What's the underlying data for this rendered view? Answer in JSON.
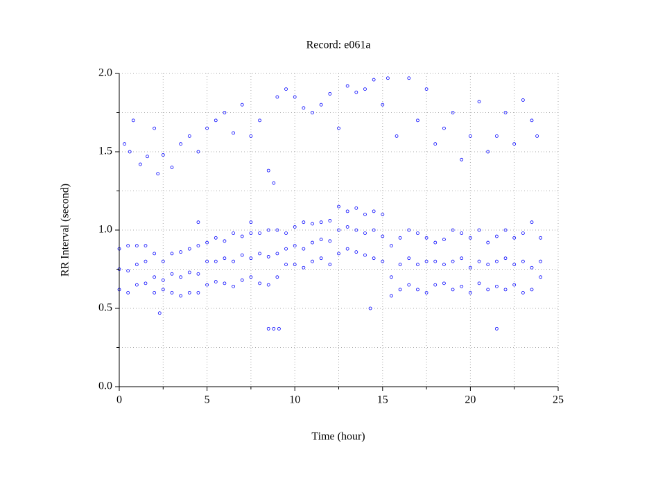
{
  "chart_data": {
    "type": "scatter",
    "title": "Record:  e061a",
    "x_label": "Time (hour)",
    "y_label": "RR Interval (second)",
    "color": "#0000ff",
    "xlim": [
      0,
      25
    ],
    "xticks": [
      0,
      5,
      10,
      15,
      20,
      25
    ],
    "xminorticks": [
      2.5,
      7.5,
      12.5,
      17.5,
      22.5
    ],
    "ylim": [
      0,
      2
    ],
    "yticks": [
      {
        "value": 0,
        "label": "0.0"
      },
      {
        "value": 0.5,
        "label": "0.5"
      },
      {
        "value": 1,
        "label": "1.0"
      },
      {
        "value": 1.5,
        "label": "1.5"
      },
      {
        "value": 2,
        "label": "2.0"
      }
    ],
    "yminorticks": [
      0.25,
      0.75,
      1.25,
      1.75
    ],
    "grid": true,
    "x": [
      0,
      0,
      0,
      0.5,
      0.5,
      0.5,
      1,
      1,
      1,
      1.5,
      1.5,
      1.5,
      2,
      2,
      2,
      2.5,
      2.5,
      2.5,
      3,
      3,
      3,
      3.5,
      3.5,
      3.5,
      4,
      4,
      4,
      4.5,
      4.5,
      4.5,
      5,
      5,
      5,
      5.5,
      5.5,
      5.5,
      6,
      6,
      6,
      6.5,
      6.5,
      6.5,
      7,
      7,
      7,
      7.5,
      7.5,
      7.5,
      8,
      8,
      8,
      8.5,
      8.5,
      8.5,
      9,
      9,
      9,
      9.5,
      9.5,
      9.5,
      10,
      10,
      10,
      10.5,
      10.5,
      10.5,
      11,
      11,
      11,
      11.5,
      11.5,
      11.5,
      12,
      12,
      12,
      12.5,
      12.5,
      12.5,
      13,
      13,
      13,
      13.5,
      13.5,
      13.5,
      14,
      14,
      14,
      14.5,
      14.5,
      14.5,
      15,
      15,
      15,
      15.5,
      15.5,
      15.5,
      16,
      16,
      16,
      16.5,
      16.5,
      16.5,
      17,
      17,
      17,
      17.5,
      17.5,
      17.5,
      18,
      18,
      18,
      18.5,
      18.5,
      18.5,
      19,
      19,
      19,
      19.5,
      19.5,
      19.5,
      20,
      20,
      20,
      20.5,
      20.5,
      20.5,
      21,
      21,
      21,
      21.5,
      21.5,
      21.5,
      22,
      22,
      22,
      22.5,
      22.5,
      22.5,
      23,
      23,
      23,
      23.5,
      23.5,
      23.5,
      24,
      24,
      24,
      0.3,
      0.6,
      0.8,
      1.2,
      1.6,
      2.0,
      2.2,
      2.5,
      3.0,
      3.5,
      4.0,
      4.5,
      5.0,
      5.5,
      6.0,
      6.5,
      7.0,
      7.5,
      8.0,
      8.5,
      8.8,
      9.0,
      9.5,
      10.0,
      10.5,
      11.0,
      11.5,
      12.0,
      12.5,
      13.0,
      13.5,
      14.0,
      14.5,
      15.0,
      15.3,
      15.8,
      16.5,
      17.0,
      17.5,
      18.0,
      18.5,
      19.0,
      19.5,
      20.0,
      20.5,
      21.0,
      21.5,
      22.0,
      22.5,
      23.0,
      23.5,
      23.8,
      8.5,
      8.8,
      9.1,
      2.3,
      21.5,
      14.3,
      4.5,
      7.5
    ],
    "values": [
      0.62,
      0.75,
      0.88,
      0.6,
      0.74,
      0.9,
      0.65,
      0.78,
      0.9,
      0.66,
      0.8,
      0.9,
      0.6,
      0.7,
      0.85,
      0.62,
      0.68,
      0.8,
      0.6,
      0.72,
      0.85,
      0.58,
      0.7,
      0.86,
      0.6,
      0.73,
      0.88,
      0.6,
      0.72,
      0.9,
      0.65,
      0.8,
      0.92,
      0.67,
      0.8,
      0.95,
      0.66,
      0.82,
      0.93,
      0.64,
      0.8,
      0.98,
      0.68,
      0.84,
      0.96,
      0.7,
      0.82,
      0.98,
      0.66,
      0.85,
      0.98,
      0.65,
      0.83,
      1.0,
      0.7,
      0.85,
      1.0,
      0.78,
      0.88,
      0.98,
      0.78,
      0.9,
      1.02,
      0.76,
      0.88,
      1.05,
      0.8,
      0.92,
      1.04,
      0.82,
      0.94,
      1.05,
      0.78,
      0.93,
      1.06,
      0.85,
      1.0,
      1.15,
      0.88,
      1.02,
      1.12,
      0.86,
      1.0,
      1.14,
      0.84,
      0.98,
      1.1,
      0.82,
      1.0,
      1.12,
      0.8,
      0.96,
      1.1,
      0.58,
      0.7,
      0.9,
      0.62,
      0.78,
      0.95,
      0.65,
      0.82,
      1.0,
      0.62,
      0.78,
      0.98,
      0.6,
      0.8,
      0.95,
      0.65,
      0.8,
      0.92,
      0.66,
      0.78,
      0.94,
      0.62,
      0.8,
      1.0,
      0.64,
      0.82,
      0.98,
      0.6,
      0.76,
      0.95,
      0.66,
      0.8,
      1.0,
      0.62,
      0.78,
      0.92,
      0.64,
      0.8,
      0.96,
      0.62,
      0.82,
      1.0,
      0.65,
      0.78,
      0.95,
      0.6,
      0.8,
      0.98,
      0.62,
      0.76,
      1.05,
      0.7,
      0.8,
      0.95,
      1.55,
      1.5,
      1.7,
      1.42,
      1.47,
      1.65,
      1.36,
      1.48,
      1.4,
      1.55,
      1.6,
      1.5,
      1.65,
      1.7,
      1.75,
      1.62,
      1.8,
      1.6,
      1.7,
      1.38,
      1.3,
      1.85,
      1.9,
      1.85,
      1.78,
      1.75,
      1.8,
      1.87,
      1.65,
      1.92,
      1.88,
      1.9,
      1.96,
      1.8,
      1.97,
      1.6,
      1.97,
      1.7,
      1.9,
      1.55,
      1.65,
      1.75,
      1.45,
      1.6,
      1.82,
      1.5,
      1.6,
      1.75,
      1.55,
      1.83,
      1.7,
      1.6,
      0.37,
      0.37,
      0.37,
      0.47,
      0.37,
      0.5,
      1.05,
      1.05
    ]
  }
}
